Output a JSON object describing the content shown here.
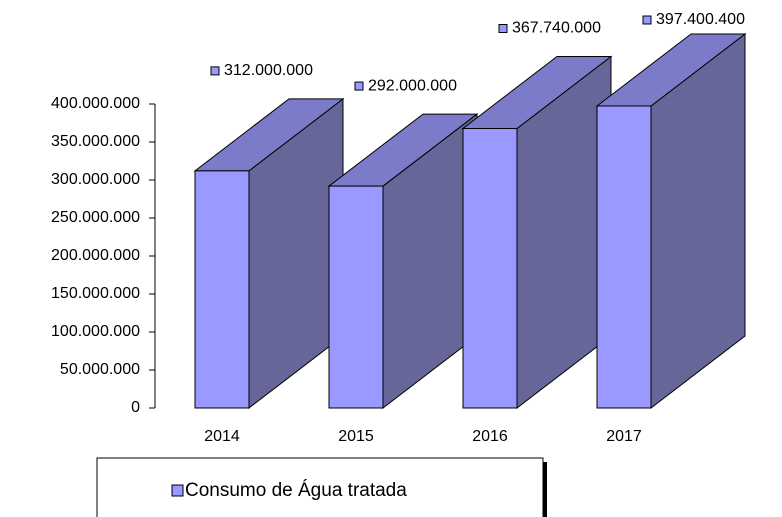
{
  "chart_data": {
    "type": "bar3d",
    "categories": [
      "2014",
      "2015",
      "2016",
      "2017"
    ],
    "series": [
      {
        "name": "Consumo de Água tratada",
        "color": "#9999ff",
        "values": [
          312000000,
          292000000,
          367740000,
          397400400
        ],
        "value_labels": [
          "312.000.000",
          "292.000.000",
          "367.740.000",
          "397.400.400"
        ]
      }
    ],
    "ylim": [
      0,
      400000000
    ],
    "yticks": [
      0,
      {
        "value": 50000000,
        "label": "50.000.000"
      },
      {
        "value": 100000000,
        "label": "100.000.000"
      },
      {
        "value": 150000000,
        "label": "150.000.000"
      },
      {
        "value": 200000000,
        "label": "200.000.000"
      },
      {
        "value": 250000000,
        "label": "250.000.000"
      },
      {
        "value": 300000000,
        "label": "300.000.000"
      },
      {
        "value": 350000000,
        "label": "350.000.000"
      },
      {
        "value": 400000000,
        "label": "400.000.000"
      }
    ]
  }
}
